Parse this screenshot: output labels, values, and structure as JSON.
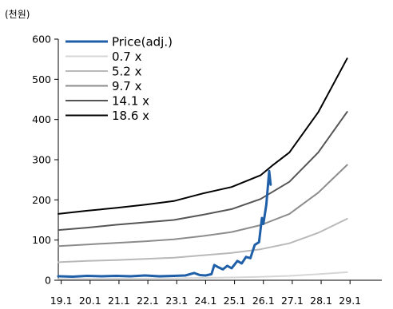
{
  "chart_data": {
    "type": "line",
    "unit_label": "(천원)",
    "title": "",
    "xlabel": "",
    "ylabel": "",
    "ylim": [
      0,
      600
    ],
    "y_ticks": [
      "0",
      "100",
      "200",
      "300",
      "400",
      "500",
      "600"
    ],
    "x_ticks": [
      "19.1",
      "20.1",
      "21.1",
      "22.1",
      "23.1",
      "24.1",
      "25.1",
      "26.1",
      "27.1",
      "28.1",
      "29.1"
    ],
    "xlim": [
      19.0,
      30.2
    ],
    "grid": false,
    "legend_position": "top-left",
    "series": [
      {
        "name": "Price(adj.)",
        "color": "#1f5fa8",
        "width": 3,
        "x": [
          19.0,
          19.5,
          20.0,
          20.5,
          21.0,
          21.5,
          22.0,
          22.5,
          23.0,
          23.4,
          23.7,
          23.9,
          24.1,
          24.3,
          24.4,
          24.55,
          24.7,
          24.85,
          25.0,
          25.2,
          25.35,
          25.5,
          25.65,
          25.8,
          25.95,
          26.05,
          26.1,
          26.2,
          26.3,
          26.35
        ],
        "values": [
          10,
          9,
          11,
          10,
          11,
          10,
          12,
          10,
          11,
          12,
          18,
          13,
          12,
          15,
          38,
          32,
          27,
          36,
          30,
          48,
          42,
          58,
          55,
          88,
          95,
          155,
          140,
          188,
          272,
          238
        ]
      },
      {
        "name": "0.7 x",
        "color": "#d6d6d6",
        "width": 2,
        "x": [
          19.0,
          20.0,
          21.0,
          22.0,
          23.0,
          24.0,
          25.0,
          26.0,
          27.0,
          28.0,
          29.0
        ],
        "values": [
          3,
          3.5,
          4,
          4.5,
          5,
          6,
          7,
          8.5,
          11,
          15,
          20
        ]
      },
      {
        "name": "5.2 x",
        "color": "#b9b9b9",
        "width": 2,
        "x": [
          19.0,
          20.0,
          21.0,
          22.0,
          23.0,
          24.0,
          25.0,
          26.0,
          27.0,
          28.0,
          29.0
        ],
        "values": [
          45,
          48,
          50,
          53,
          56,
          62,
          68,
          77,
          92,
          118,
          153
        ]
      },
      {
        "name": "9.7 x",
        "color": "#8c8c8c",
        "width": 2,
        "x": [
          19.0,
          20.0,
          21.0,
          22.0,
          23.0,
          24.0,
          25.0,
          26.0,
          27.0,
          28.0,
          29.0
        ],
        "values": [
          85,
          89,
          93,
          97,
          102,
          110,
          120,
          137,
          165,
          218,
          287
        ]
      },
      {
        "name": "14.1 x",
        "color": "#555555",
        "width": 2,
        "x": [
          19.0,
          20.0,
          21.0,
          22.0,
          23.0,
          24.0,
          25.0,
          26.0,
          27.0,
          28.0,
          29.0
        ],
        "values": [
          125,
          131,
          138,
          144,
          150,
          163,
          177,
          202,
          245,
          318,
          419
        ]
      },
      {
        "name": "18.6 x",
        "color": "#000000",
        "width": 2,
        "x": [
          19.0,
          20.0,
          21.0,
          22.0,
          23.0,
          24.0,
          25.0,
          26.0,
          26.4,
          27.0,
          28.0,
          29.0
        ],
        "values": [
          165,
          173,
          180,
          188,
          197,
          216,
          232,
          261,
          285,
          318,
          418,
          552
        ]
      }
    ]
  }
}
